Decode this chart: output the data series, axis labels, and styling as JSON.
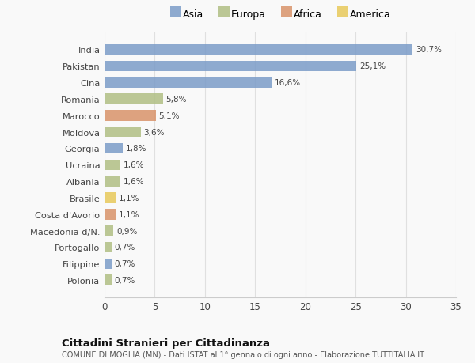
{
  "categories": [
    "India",
    "Pakistan",
    "Cina",
    "Romania",
    "Marocco",
    "Moldova",
    "Georgia",
    "Ucraina",
    "Albania",
    "Brasile",
    "Costa d'Avorio",
    "Macedonia d/N.",
    "Portogallo",
    "Filippine",
    "Polonia"
  ],
  "values": [
    30.7,
    25.1,
    16.6,
    5.8,
    5.1,
    3.6,
    1.8,
    1.6,
    1.6,
    1.1,
    1.1,
    0.9,
    0.7,
    0.7,
    0.7
  ],
  "labels": [
    "30,7%",
    "25,1%",
    "16,6%",
    "5,8%",
    "5,1%",
    "3,6%",
    "1,8%",
    "1,6%",
    "1,6%",
    "1,1%",
    "1,1%",
    "0,9%",
    "0,7%",
    "0,7%",
    "0,7%"
  ],
  "colors": [
    "#7b9cc8",
    "#7b9cc8",
    "#7b9cc8",
    "#b0bf84",
    "#d9936a",
    "#b0bf84",
    "#7b9cc8",
    "#b0bf84",
    "#b0bf84",
    "#e8c95a",
    "#d9936a",
    "#b0bf84",
    "#b0bf84",
    "#7b9cc8",
    "#b0bf84"
  ],
  "legend_labels": [
    "Asia",
    "Europa",
    "Africa",
    "America"
  ],
  "legend_colors": [
    "#7b9cc8",
    "#b0bf84",
    "#d9936a",
    "#e8c95a"
  ],
  "title": "Cittadini Stranieri per Cittadinanza",
  "subtitle": "COMUNE DI MOGLIA (MN) - Dati ISTAT al 1° gennaio di ogni anno - Elaborazione TUTTITALIA.IT",
  "xlim": [
    0,
    35
  ],
  "xticks": [
    0,
    5,
    10,
    15,
    20,
    25,
    30,
    35
  ],
  "background_color": "#f9f9f9",
  "grid_color": "#e0e0e0",
  "bar_height": 0.65
}
